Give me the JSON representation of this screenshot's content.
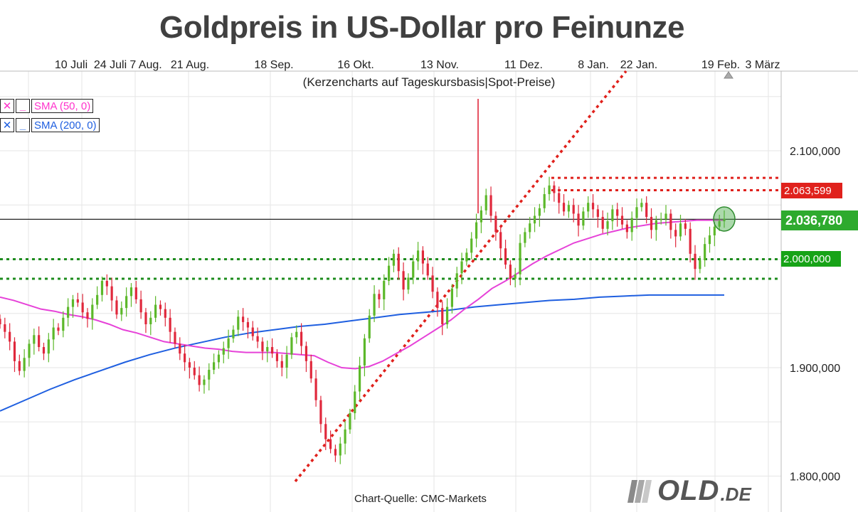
{
  "title": "Goldpreis in US-Dollar pro Feinunze",
  "subtitle": "(Kerzencharts auf Tageskursbasis|Spot-Preise)",
  "source": "Chart-Quelle: CMC-Markets",
  "logo": {
    "mark_text": "G",
    "text": "OLD",
    "tld": ".DE"
  },
  "legend": [
    {
      "label": "SMA (50, 0)",
      "color": "#ff33cc"
    },
    {
      "label": "SMA (200, 0)",
      "color": "#1f5fe0"
    }
  ],
  "colors": {
    "up": "#5cb82a",
    "down": "#e0283c",
    "sma50": "#e642d8",
    "sma200": "#1f5fe0",
    "resistance": "#e0211c",
    "support": "#1e8c1e",
    "grid": "#e6e6e6"
  },
  "chart_data": {
    "type": "candlestick",
    "title": "Goldpreis in US-Dollar pro Feinunze",
    "x_tick_labels": [
      "10 Juli",
      "24 Juli",
      "7 Aug.",
      "21 Aug.",
      "18 Sep.",
      "16 Okt.",
      "13 Nov.",
      "11 Dez.",
      "8 Jan.",
      "22 Jan.",
      "19 Feb.",
      "3 März"
    ],
    "y_tick_labels": [
      "2.100,000",
      "1.900,000",
      "1.800,000"
    ],
    "ylim": [
      1790,
      2150
    ],
    "current_price": {
      "value": 2036.78,
      "label": "2.036,780"
    },
    "levels": [
      {
        "value": 2075,
        "style": "dotted",
        "color": "red",
        "label": ""
      },
      {
        "value": 2063.599,
        "style": "dotted",
        "color": "red",
        "label": "2.063,599"
      },
      {
        "value": 2000,
        "style": "dotted",
        "color": "green",
        "label": "2.000,000"
      },
      {
        "value": 1982,
        "style": "dotted",
        "color": "green",
        "label": ""
      }
    ],
    "trendline": {
      "from": {
        "x_index": -24,
        "y": 1790
      },
      "to": {
        "x_index": 66,
        "y": 2150
      },
      "style": "dotted",
      "color": "red"
    },
    "highlight_circle": {
      "x_index": 136,
      "y": 2037
    },
    "candle_closes": [
      1940,
      1933,
      1924,
      1906,
      1897,
      1909,
      1922,
      1930,
      1919,
      1913,
      1926,
      1937,
      1934,
      1946,
      1956,
      1963,
      1960,
      1951,
      1945,
      1958,
      1967,
      1980,
      1975,
      1962,
      1949,
      1955,
      1966,
      1974,
      1963,
      1951,
      1940,
      1946,
      1958,
      1954,
      1946,
      1933,
      1922,
      1913,
      1905,
      1900,
      1893,
      1884,
      1889,
      1898,
      1905,
      1912,
      1918,
      1927,
      1935,
      1947,
      1942,
      1937,
      1929,
      1924,
      1915,
      1919,
      1913,
      1906,
      1900,
      1912,
      1928,
      1933,
      1920,
      1906,
      1890,
      1870,
      1848,
      1834,
      1825,
      1819,
      1830,
      1843,
      1858,
      1878,
      1902,
      1927,
      1948,
      1968,
      1963,
      1980,
      1994,
      2005,
      1989,
      1972,
      1983,
      1998,
      2008,
      1996,
      1985,
      1970,
      1955,
      1940,
      1956,
      1973,
      1987,
      1998,
      2006,
      2019,
      2034,
      2045,
      2059,
      2040,
      2025,
      2010,
      1995,
      1982,
      1986,
      2015,
      2025,
      2033,
      2040,
      2047,
      2060,
      2068,
      2061,
      2052,
      2044,
      2050,
      2042,
      2031,
      2044,
      2052,
      2046,
      2039,
      2028,
      2035,
      2046,
      2040,
      2032,
      2025,
      2038,
      2048,
      2052,
      2039,
      2027,
      2036,
      2037,
      2042,
      2027,
      2021,
      2033,
      2028,
      2005,
      1991,
      1999,
      2014,
      2022,
      2030,
      2035,
      2037
    ],
    "candle_dates_note": "",
    "sma50": [
      1965,
      1962,
      1958,
      1954,
      1952,
      1949,
      1947,
      1944,
      1940,
      1935,
      1932,
      1928,
      1924,
      1922,
      1920,
      1918,
      1917,
      1915,
      1914,
      1914,
      1914,
      1913,
      1912,
      1911,
      1905,
      1900,
      1899,
      1901,
      1906,
      1913,
      1920,
      1928,
      1936,
      1944,
      1954,
      1963,
      1973,
      1980,
      1988,
      1996,
      2003,
      2009,
      2015,
      2019,
      2023,
      2026,
      2029,
      2031,
      2033,
      2034,
      2035,
      2036,
      2036,
      2036
    ],
    "sma200": [
      1860,
      1870,
      1880,
      1889,
      1897,
      1905,
      1912,
      1918,
      1923,
      1928,
      1932,
      1935,
      1938,
      1940,
      1943,
      1946,
      1949,
      1951,
      1953,
      1956,
      1958,
      1960,
      1962,
      1963,
      1965,
      1966,
      1967,
      1967,
      1967,
      1967
    ]
  }
}
